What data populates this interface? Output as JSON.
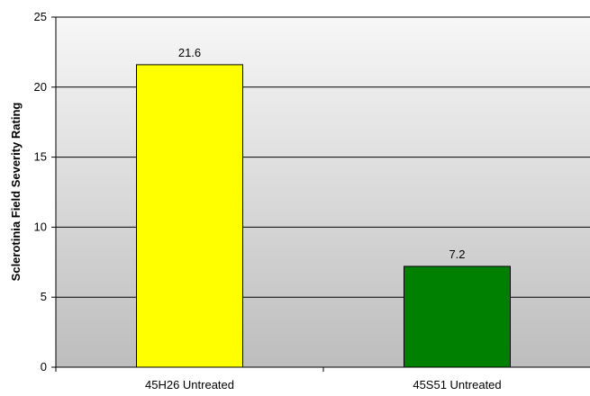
{
  "chart_data": {
    "type": "bar",
    "title": "",
    "xlabel": "",
    "ylabel": "Sclerotinia Field Severity Rating",
    "ylim": [
      0,
      25
    ],
    "yticks": [
      0,
      5,
      10,
      15,
      20,
      25
    ],
    "categories": [
      "45H26 Untreated",
      "45S51 Untreated"
    ],
    "values": [
      21.6,
      7.2
    ],
    "data_labels": [
      "21.6",
      "7.2"
    ],
    "bar_colors": [
      "#ffff00",
      "#008000"
    ],
    "grid": true,
    "legend": "none",
    "background": "gradient-gray"
  }
}
